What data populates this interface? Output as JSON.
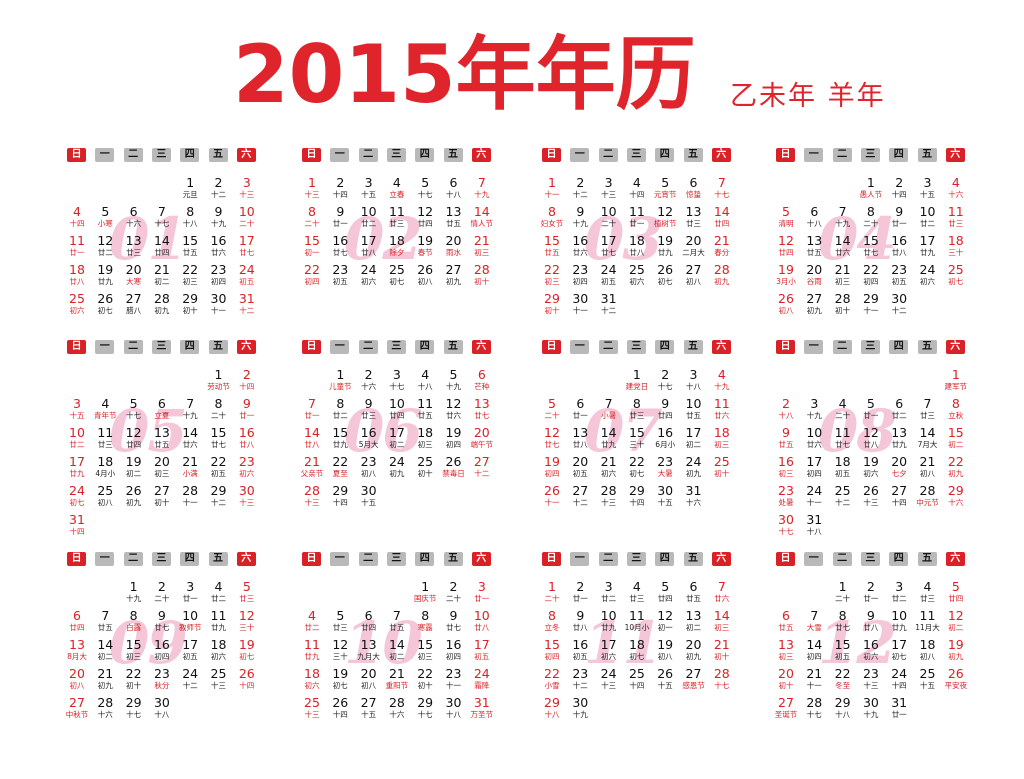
{
  "title": "2015年年历",
  "subtitle": "乙未年  羊年",
  "weekdays": [
    "日",
    "一",
    "二",
    "三",
    "四",
    "五",
    "六"
  ],
  "colors": {
    "accent": "#d92127",
    "title_red": "#e0242c",
    "weekday_gray": "#b9b9b9",
    "watermark_pink": "#f4c6d7"
  },
  "months": [
    {
      "watermark": "01",
      "start": 4,
      "days": [
        "元旦",
        "十二",
        "十三",
        "十四",
        "小寒",
        "十六",
        "十七",
        "十八",
        "十九",
        "二十",
        "廿一",
        "廿二",
        "廿三",
        "廿四",
        "廿五",
        "廿六",
        "廿七",
        "廿八",
        "廿九",
        "大寒",
        "初二",
        "初三",
        "初四",
        "初五",
        "初六",
        "初七",
        "腊八",
        "初九",
        "初十",
        "十一",
        "十二"
      ]
    },
    {
      "watermark": "02",
      "start": 0,
      "days": [
        "十三",
        "十四",
        "十五",
        "立春",
        "十七",
        "十八",
        "十九",
        "二十",
        "廿一",
        "廿二",
        "廿三",
        "廿四",
        "廿五",
        "情人节",
        "初一",
        "廿七",
        "廿八",
        "除夕",
        "春节",
        "雨水",
        "初三",
        "初四",
        "初五",
        "初六",
        "初七",
        "初八",
        "初九",
        "初十"
      ]
    },
    {
      "watermark": "03",
      "start": 0,
      "days": [
        "十一",
        "十二",
        "十三",
        "十四",
        "元宵节",
        "惊蛰",
        "十七",
        "妇女节",
        "十九",
        "二十",
        "廿一",
        "植树节",
        "廿三",
        "廿四",
        "廿五",
        "廿六",
        "廿七",
        "廿八",
        "廿九",
        "二月大",
        "春分",
        "初三",
        "初四",
        "初五",
        "初六",
        "初七",
        "初八",
        "初九",
        "初十",
        "十一",
        "十二"
      ]
    },
    {
      "watermark": "04",
      "start": 3,
      "days": [
        "愚人节",
        "十四",
        "十五",
        "十六",
        "清明",
        "十八",
        "十九",
        "二十",
        "廿一",
        "廿二",
        "廿三",
        "廿四",
        "廿五",
        "廿六",
        "廿七",
        "廿八",
        "廿九",
        "三十",
        "3月小",
        "谷雨",
        "初三",
        "初四",
        "初五",
        "初六",
        "初七",
        "初八",
        "初九",
        "初十",
        "十一",
        "十二"
      ]
    },
    {
      "watermark": "05",
      "start": 5,
      "days": [
        "劳动节",
        "十四",
        "十五",
        "青年节",
        "十七",
        "立夏",
        "十九",
        "二十",
        "廿一",
        "廿二",
        "廿三",
        "廿四",
        "廿五",
        "廿六",
        "廿七",
        "廿八",
        "廿九",
        "4月小",
        "初二",
        "初三",
        "小满",
        "初五",
        "初六",
        "初七",
        "初八",
        "初九",
        "初十",
        "十一",
        "十二",
        "十三",
        "十四"
      ]
    },
    {
      "watermark": "06",
      "start": 1,
      "days": [
        "儿童节",
        "十六",
        "十七",
        "十八",
        "十九",
        "芒种",
        "廿一",
        "廿二",
        "廿三",
        "廿四",
        "廿五",
        "廿六",
        "廿七",
        "廿八",
        "廿九",
        "5月大",
        "初二",
        "初三",
        "初四",
        "端午节",
        "父亲节",
        "夏至",
        "初八",
        "初九",
        "初十",
        "禁毒日",
        "十二",
        "十三",
        "十四",
        "十五"
      ]
    },
    {
      "watermark": "07",
      "start": 3,
      "days": [
        "建党日",
        "十七",
        "十八",
        "十九",
        "二十",
        "廿一",
        "小暑",
        "廿三",
        "廿四",
        "廿五",
        "廿六",
        "廿七",
        "廿八",
        "廿九",
        "三十",
        "6月小",
        "初二",
        "初三",
        "初四",
        "初五",
        "初六",
        "初七",
        "大暑",
        "初九",
        "初十",
        "十一",
        "十二",
        "十三",
        "十四",
        "十五",
        "十六"
      ]
    },
    {
      "watermark": "08",
      "start": 6,
      "days": [
        "建军节",
        "十八",
        "十九",
        "二十",
        "廿一",
        "廿二",
        "廿三",
        "立秋",
        "廿五",
        "廿六",
        "廿七",
        "廿八",
        "廿九",
        "7月大",
        "初二",
        "初三",
        "初四",
        "初五",
        "初六",
        "七夕",
        "初八",
        "初九",
        "处暑",
        "十一",
        "十二",
        "十三",
        "十四",
        "中元节",
        "十六",
        "十七",
        "十八"
      ]
    },
    {
      "watermark": "09",
      "start": 2,
      "days": [
        "十九",
        "二十",
        "廿一",
        "廿二",
        "廿三",
        "廿四",
        "廿五",
        "白露",
        "廿七",
        "教师节",
        "廿九",
        "三十",
        "8月大",
        "初二",
        "初三",
        "初四",
        "初五",
        "初六",
        "初七",
        "初八",
        "初九",
        "初十",
        "秋分",
        "十二",
        "十三",
        "十四",
        "中秋节",
        "十六",
        "十七",
        "十八"
      ]
    },
    {
      "watermark": "10",
      "start": 4,
      "days": [
        "国庆节",
        "二十",
        "廿一",
        "廿二",
        "廿三",
        "廿四",
        "廿五",
        "寒露",
        "廿七",
        "廿八",
        "廿九",
        "三十",
        "九月大",
        "初二",
        "初三",
        "初四",
        "初五",
        "初六",
        "初七",
        "初八",
        "重阳节",
        "初十",
        "十一",
        "霜降",
        "十三",
        "十四",
        "十五",
        "十六",
        "十七",
        "十八",
        "万圣节"
      ]
    },
    {
      "watermark": "11",
      "start": 0,
      "days": [
        "二十",
        "廿一",
        "廿二",
        "廿三",
        "廿四",
        "廿五",
        "廿六",
        "立冬",
        "廿八",
        "廿九",
        "10月小",
        "初一",
        "初二",
        "初三",
        "初四",
        "初五",
        "初六",
        "初七",
        "初八",
        "初九",
        "初十",
        "小雪",
        "十二",
        "十三",
        "十四",
        "十五",
        "感恩节",
        "十七",
        "十八",
        "十九"
      ]
    },
    {
      "watermark": "12",
      "start": 2,
      "days": [
        "二十",
        "廿一",
        "廿二",
        "廿三",
        "廿四",
        "廿五",
        "大雪",
        "廿七",
        "廿八",
        "廿九",
        "11月大",
        "初二",
        "初三",
        "初四",
        "初五",
        "初六",
        "初七",
        "初八",
        "初九",
        "初十",
        "十一",
        "冬至",
        "十三",
        "十四",
        "十五",
        "平安夜",
        "圣诞节",
        "十七",
        "十八",
        "十九",
        "廿一"
      ]
    }
  ]
}
